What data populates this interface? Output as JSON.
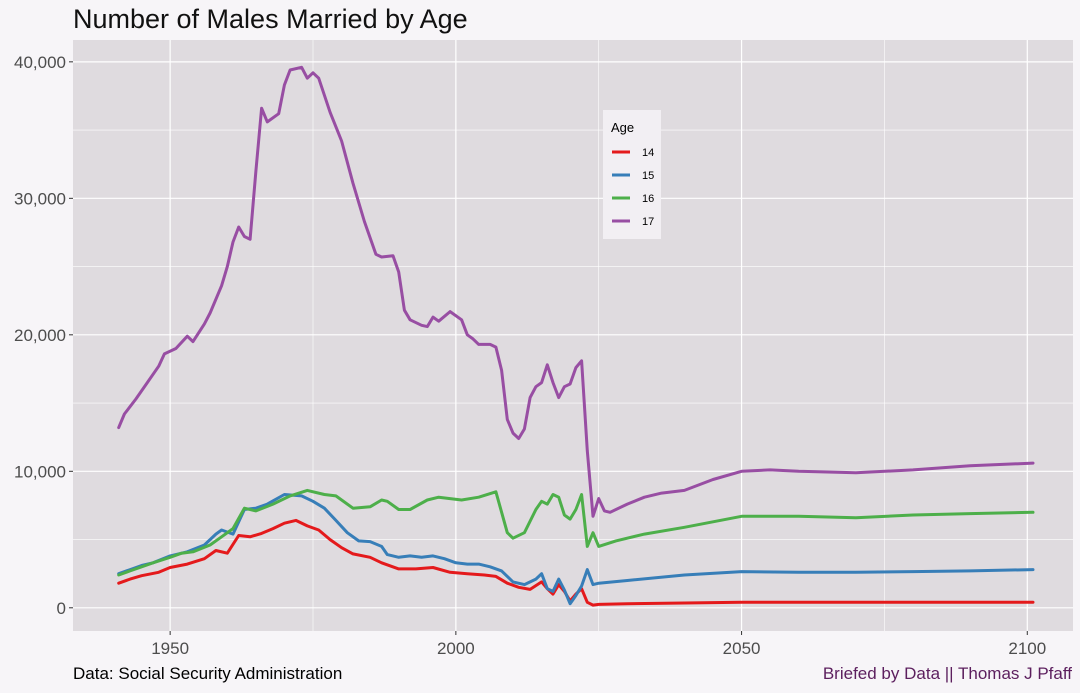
{
  "title": "Number of Males Married by Age",
  "caption_left": "Data: Social Security Administration",
  "caption_right": "Briefed by Data || Thomas J Pfaff",
  "colors": {
    "panel": "#dfdbdf",
    "grid": "#ffffff",
    "background": "#f7f5f8",
    "legend_bg": "#f2eff3",
    "caption_right": "#5c1f5e"
  },
  "chart_data": {
    "type": "line",
    "title": "Number of Males Married by Age",
    "xlabel": "",
    "ylabel": "",
    "xlim": [
      1933,
      2108
    ],
    "ylim": [
      -1700,
      41600
    ],
    "x_ticks": [
      1950,
      2000,
      2050,
      2100
    ],
    "x_tick_labels": [
      "1950",
      "2000",
      "2050",
      "2100"
    ],
    "y_ticks": [
      0,
      10000,
      20000,
      30000,
      40000
    ],
    "y_tick_labels": [
      "0",
      "10,000",
      "20,000",
      "30,000",
      "40,000"
    ],
    "grid": true,
    "legend": {
      "title": "Age",
      "placement": "inside top-center",
      "entries": [
        "14",
        "15",
        "16",
        "17"
      ]
    },
    "series": [
      {
        "name": "14",
        "color": "#e41a1c",
        "points": [
          [
            1941,
            1800
          ],
          [
            1943,
            2100
          ],
          [
            1945,
            2350
          ],
          [
            1948,
            2600
          ],
          [
            1950,
            2950
          ],
          [
            1953,
            3200
          ],
          [
            1956,
            3600
          ],
          [
            1958,
            4200
          ],
          [
            1960,
            4000
          ],
          [
            1962,
            5300
          ],
          [
            1964,
            5200
          ],
          [
            1966,
            5450
          ],
          [
            1968,
            5800
          ],
          [
            1970,
            6200
          ],
          [
            1972,
            6400
          ],
          [
            1974,
            6000
          ],
          [
            1976,
            5700
          ],
          [
            1978,
            5000
          ],
          [
            1980,
            4400
          ],
          [
            1982,
            3950
          ],
          [
            1985,
            3700
          ],
          [
            1987,
            3300
          ],
          [
            1990,
            2850
          ],
          [
            1993,
            2850
          ],
          [
            1996,
            2950
          ],
          [
            1999,
            2600
          ],
          [
            2002,
            2500
          ],
          [
            2005,
            2400
          ],
          [
            2007,
            2300
          ],
          [
            2009,
            1800
          ],
          [
            2011,
            1500
          ],
          [
            2013,
            1350
          ],
          [
            2015,
            1900
          ],
          [
            2016,
            1400
          ],
          [
            2017,
            1000
          ],
          [
            2018,
            1700
          ],
          [
            2019,
            1200
          ],
          [
            2020,
            500
          ],
          [
            2021,
            1000
          ],
          [
            2022,
            1400
          ],
          [
            2023,
            400
          ],
          [
            2024,
            200
          ],
          [
            2025,
            250
          ],
          [
            2030,
            300
          ],
          [
            2040,
            350
          ],
          [
            2050,
            400
          ],
          [
            2060,
            400
          ],
          [
            2070,
            400
          ],
          [
            2080,
            400
          ],
          [
            2090,
            400
          ],
          [
            2101,
            400
          ]
        ]
      },
      {
        "name": "15",
        "color": "#377eb8",
        "points": [
          [
            1941,
            2500
          ],
          [
            1943,
            2800
          ],
          [
            1945,
            3100
          ],
          [
            1947,
            3300
          ],
          [
            1950,
            3800
          ],
          [
            1953,
            4100
          ],
          [
            1956,
            4600
          ],
          [
            1958,
            5400
          ],
          [
            1959,
            5700
          ],
          [
            1961,
            5400
          ],
          [
            1963,
            7200
          ],
          [
            1965,
            7300
          ],
          [
            1967,
            7600
          ],
          [
            1970,
            8300
          ],
          [
            1973,
            8200
          ],
          [
            1975,
            7800
          ],
          [
            1977,
            7300
          ],
          [
            1979,
            6400
          ],
          [
            1981,
            5500
          ],
          [
            1983,
            4900
          ],
          [
            1985,
            4850
          ],
          [
            1987,
            4500
          ],
          [
            1988,
            3900
          ],
          [
            1990,
            3700
          ],
          [
            1992,
            3800
          ],
          [
            1994,
            3700
          ],
          [
            1996,
            3800
          ],
          [
            1998,
            3600
          ],
          [
            2000,
            3300
          ],
          [
            2002,
            3200
          ],
          [
            2004,
            3200
          ],
          [
            2006,
            3000
          ],
          [
            2008,
            2700
          ],
          [
            2010,
            1900
          ],
          [
            2012,
            1700
          ],
          [
            2014,
            2100
          ],
          [
            2015,
            2500
          ],
          [
            2016,
            1400
          ],
          [
            2017,
            1200
          ],
          [
            2018,
            2100
          ],
          [
            2019,
            1300
          ],
          [
            2020,
            300
          ],
          [
            2021,
            900
          ],
          [
            2022,
            1600
          ],
          [
            2023,
            2800
          ],
          [
            2024,
            1700
          ],
          [
            2025,
            1800
          ],
          [
            2030,
            2000
          ],
          [
            2040,
            2400
          ],
          [
            2050,
            2650
          ],
          [
            2060,
            2600
          ],
          [
            2070,
            2600
          ],
          [
            2080,
            2650
          ],
          [
            2090,
            2700
          ],
          [
            2101,
            2800
          ]
        ]
      },
      {
        "name": "16",
        "color": "#4daf4a",
        "points": [
          [
            1941,
            2400
          ],
          [
            1943,
            2700
          ],
          [
            1945,
            3000
          ],
          [
            1947,
            3300
          ],
          [
            1950,
            3700
          ],
          [
            1952,
            4000
          ],
          [
            1954,
            4100
          ],
          [
            1957,
            4600
          ],
          [
            1959,
            5200
          ],
          [
            1961,
            5800
          ],
          [
            1963,
            7300
          ],
          [
            1965,
            7100
          ],
          [
            1968,
            7600
          ],
          [
            1971,
            8200
          ],
          [
            1974,
            8600
          ],
          [
            1977,
            8300
          ],
          [
            1979,
            8200
          ],
          [
            1982,
            7300
          ],
          [
            1985,
            7400
          ],
          [
            1987,
            7900
          ],
          [
            1988,
            7800
          ],
          [
            1990,
            7200
          ],
          [
            1992,
            7200
          ],
          [
            1995,
            7900
          ],
          [
            1997,
            8100
          ],
          [
            1999,
            8000
          ],
          [
            2001,
            7900
          ],
          [
            2004,
            8100
          ],
          [
            2007,
            8500
          ],
          [
            2009,
            5500
          ],
          [
            2010,
            5100
          ],
          [
            2012,
            5500
          ],
          [
            2014,
            7200
          ],
          [
            2015,
            7800
          ],
          [
            2016,
            7600
          ],
          [
            2017,
            8300
          ],
          [
            2018,
            8100
          ],
          [
            2019,
            6800
          ],
          [
            2020,
            6500
          ],
          [
            2021,
            7200
          ],
          [
            2022,
            8300
          ],
          [
            2023,
            4500
          ],
          [
            2024,
            5500
          ],
          [
            2025,
            4500
          ],
          [
            2028,
            4900
          ],
          [
            2033,
            5400
          ],
          [
            2040,
            5900
          ],
          [
            2050,
            6700
          ],
          [
            2060,
            6700
          ],
          [
            2070,
            6600
          ],
          [
            2080,
            6800
          ],
          [
            2090,
            6900
          ],
          [
            2101,
            7000
          ]
        ]
      },
      {
        "name": "17",
        "color": "#984ea3",
        "points": [
          [
            1941,
            13200
          ],
          [
            1942,
            14200
          ],
          [
            1944,
            15300
          ],
          [
            1946,
            16500
          ],
          [
            1948,
            17700
          ],
          [
            1949,
            18600
          ],
          [
            1951,
            19000
          ],
          [
            1953,
            19900
          ],
          [
            1954,
            19500
          ],
          [
            1956,
            20800
          ],
          [
            1957,
            21600
          ],
          [
            1959,
            23600
          ],
          [
            1960,
            25000
          ],
          [
            1961,
            26800
          ],
          [
            1962,
            27900
          ],
          [
            1963,
            27200
          ],
          [
            1964,
            27000
          ],
          [
            1965,
            32000
          ],
          [
            1966,
            36600
          ],
          [
            1967,
            35600
          ],
          [
            1969,
            36200
          ],
          [
            1970,
            38300
          ],
          [
            1971,
            39400
          ],
          [
            1973,
            39600
          ],
          [
            1974,
            38800
          ],
          [
            1975,
            39200
          ],
          [
            1976,
            38800
          ],
          [
            1978,
            36300
          ],
          [
            1980,
            34200
          ],
          [
            1982,
            31100
          ],
          [
            1984,
            28300
          ],
          [
            1986,
            25900
          ],
          [
            1987,
            25700
          ],
          [
            1989,
            25800
          ],
          [
            1990,
            24600
          ],
          [
            1991,
            21800
          ],
          [
            1992,
            21100
          ],
          [
            1994,
            20700
          ],
          [
            1995,
            20600
          ],
          [
            1996,
            21300
          ],
          [
            1997,
            21000
          ],
          [
            1999,
            21700
          ],
          [
            2001,
            21100
          ],
          [
            2002,
            20000
          ],
          [
            2003,
            19700
          ],
          [
            2004,
            19300
          ],
          [
            2006,
            19300
          ],
          [
            2007,
            19100
          ],
          [
            2008,
            17400
          ],
          [
            2009,
            13800
          ],
          [
            2010,
            12800
          ],
          [
            2011,
            12400
          ],
          [
            2012,
            13100
          ],
          [
            2013,
            15400
          ],
          [
            2014,
            16200
          ],
          [
            2015,
            16500
          ],
          [
            2016,
            17800
          ],
          [
            2017,
            16500
          ],
          [
            2018,
            15400
          ],
          [
            2019,
            16200
          ],
          [
            2020,
            16400
          ],
          [
            2021,
            17600
          ],
          [
            2022,
            18100
          ],
          [
            2023,
            11500
          ],
          [
            2024,
            6700
          ],
          [
            2025,
            8000
          ],
          [
            2026,
            7100
          ],
          [
            2027,
            7000
          ],
          [
            2030,
            7600
          ],
          [
            2033,
            8100
          ],
          [
            2036,
            8400
          ],
          [
            2040,
            8600
          ],
          [
            2045,
            9400
          ],
          [
            2050,
            10000
          ],
          [
            2055,
            10100
          ],
          [
            2060,
            10000
          ],
          [
            2070,
            9900
          ],
          [
            2080,
            10100
          ],
          [
            2090,
            10400
          ],
          [
            2101,
            10600
          ]
        ]
      }
    ]
  }
}
